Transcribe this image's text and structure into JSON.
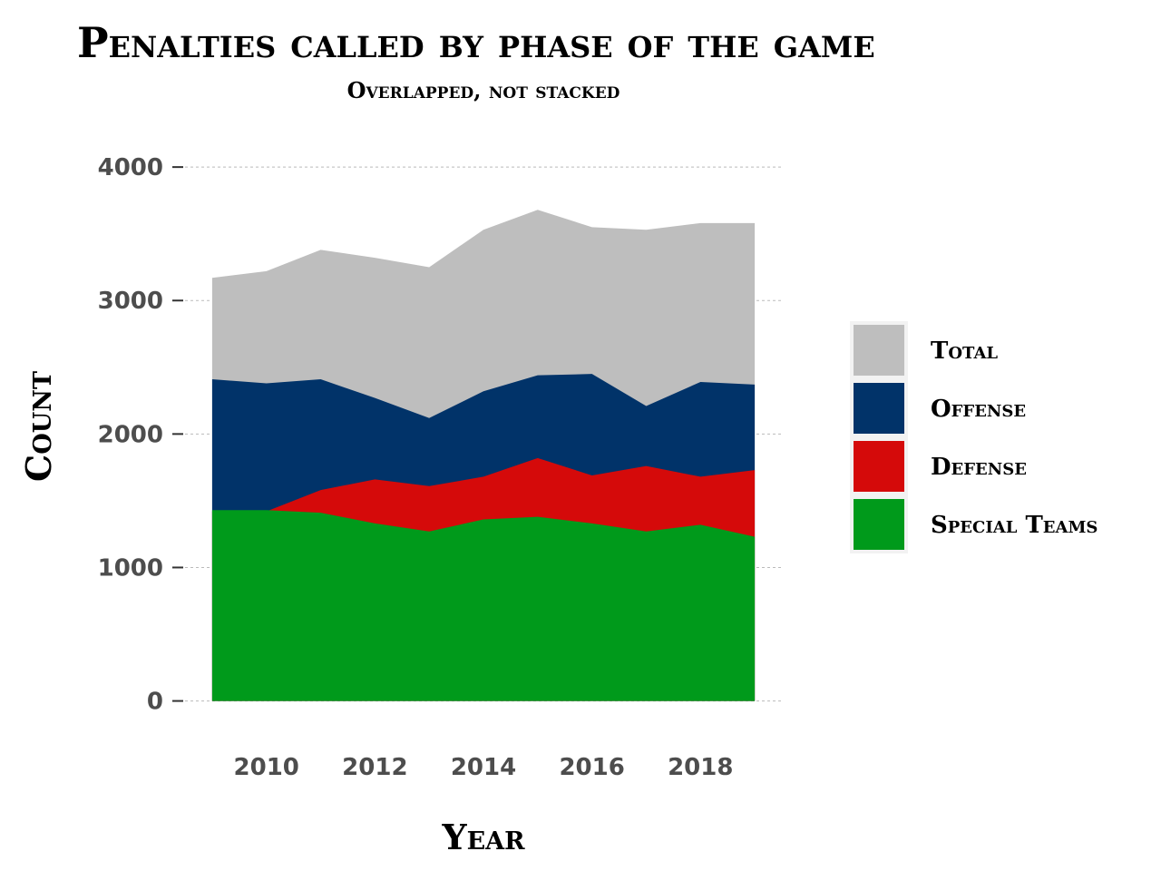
{
  "chart_data": {
    "type": "area",
    "title": "Penalties called by phase of the game",
    "subtitle": "Overlapped, not stacked",
    "xlabel": "Year",
    "ylabel": "Count",
    "x": [
      2009,
      2010,
      2011,
      2012,
      2013,
      2014,
      2015,
      2016,
      2017,
      2018,
      2019
    ],
    "xlim": [
      2008.5,
      2019.5
    ],
    "ylim": [
      -200,
      4300
    ],
    "x_ticks": [
      2010,
      2012,
      2014,
      2016,
      2018
    ],
    "y_ticks": [
      0,
      1000,
      2000,
      3000,
      4000
    ],
    "grid": "horizontal dashed",
    "legend_position": "right",
    "series": [
      {
        "name": "Total",
        "color": "#bebebe",
        "values": [
          3170,
          3220,
          3380,
          3320,
          3250,
          3530,
          3680,
          3550,
          3530,
          3580,
          3580
        ]
      },
      {
        "name": "Offense",
        "color": "#013369",
        "values": [
          2410,
          2380,
          2410,
          2270,
          2120,
          2320,
          2440,
          2450,
          2210,
          2390,
          2370
        ]
      },
      {
        "name": "Defense",
        "color": "#d50a0a",
        "values": [
          1420,
          1420,
          1580,
          1660,
          1610,
          1680,
          1820,
          1690,
          1760,
          1680,
          1730
        ]
      },
      {
        "name": "Special Teams",
        "color": "#009a1b",
        "values": [
          1430,
          1430,
          1410,
          1330,
          1270,
          1360,
          1380,
          1330,
          1270,
          1320,
          1230
        ]
      }
    ]
  }
}
